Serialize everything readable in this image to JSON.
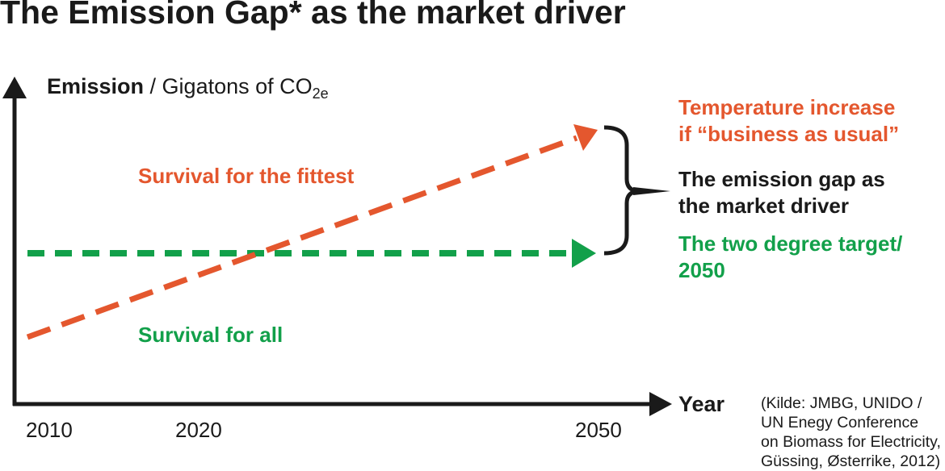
{
  "title": "The Emission Gap* as the market driver",
  "y_axis": {
    "label_bold": "Emission",
    "label_rest": " / Gigatons of CO",
    "label_sub": "2e"
  },
  "x_axis": {
    "label": "Year",
    "ticks": [
      "2010",
      "2020",
      "2050"
    ]
  },
  "regions": {
    "upper": "Survival for the fittest",
    "lower": "Survival for all"
  },
  "annotations": {
    "bau": [
      "Temperature increase",
      "if “business as usual”"
    ],
    "gap": [
      "The emission gap as",
      "the market driver"
    ],
    "target": [
      "The two degree target/",
      "2050"
    ]
  },
  "source": [
    "(Kilde: JMBG, UNIDO /",
    "UN Enegy Conference",
    "on Biomass for Electricity,",
    "Güssing, Østerrike, 2012)"
  ],
  "colors": {
    "bau": "#e4572e",
    "target": "#12a04a",
    "axis": "#1a1a1a"
  }
}
